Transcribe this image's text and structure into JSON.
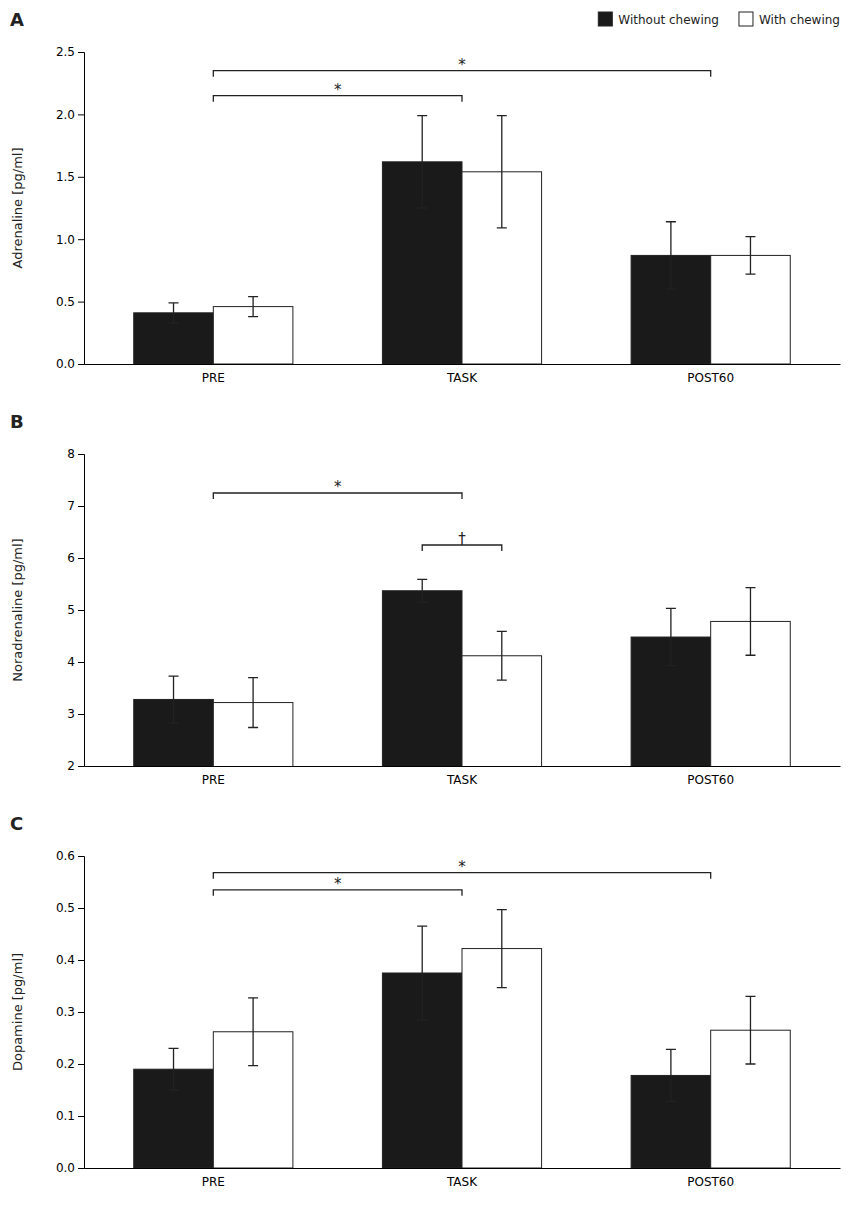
{
  "chart_data": [
    {
      "type": "bar",
      "title": "A",
      "ylabel": "Adrenaline [pg/ml]",
      "categories": [
        "PRE",
        "TASK",
        "POST60"
      ],
      "series": [
        {
          "name": "Without chewing",
          "color": "#1a1a1a",
          "values": [
            0.41,
            1.62,
            0.87
          ],
          "errors": [
            0.08,
            0.37,
            0.27
          ]
        },
        {
          "name": "With chewing",
          "color": "#ffffff",
          "values": [
            0.46,
            1.54,
            0.87
          ],
          "errors": [
            0.08,
            0.45,
            0.15
          ]
        }
      ],
      "ylim": [
        0,
        2.5
      ],
      "yticks": [
        {
          "value": 0,
          "label": "0.0"
        },
        0.5,
        {
          "value": 1.0,
          "label": "1.0"
        },
        1.5,
        {
          "value": 2.0,
          "label": "2.0"
        },
        2.5
      ],
      "grid": false,
      "legend": "upper right",
      "annotations": [
        {
          "text": "*",
          "x": [
            "PRE",
            "TASK"
          ],
          "y": 2.15
        },
        {
          "text": "*",
          "x": [
            "PRE",
            "POST60"
          ],
          "y": 2.35
        }
      ]
    },
    {
      "type": "bar",
      "title": "B",
      "ylabel": "Noradrenaline [pg/ml]",
      "categories": [
        "PRE",
        "TASK",
        "POST60"
      ],
      "series": [
        {
          "name": "Without chewing",
          "color": "#1a1a1a",
          "values": [
            3.28,
            5.37,
            4.48
          ],
          "errors": [
            0.45,
            0.22,
            0.55
          ]
        },
        {
          "name": "With chewing",
          "color": "#ffffff",
          "values": [
            3.22,
            4.12,
            4.78
          ],
          "errors": [
            0.48,
            0.47,
            0.65
          ]
        }
      ],
      "ylim": [
        2,
        8
      ],
      "yticks": [
        2,
        3,
        4,
        5,
        6,
        7,
        8
      ],
      "grid": false,
      "legend": false,
      "annotations": [
        {
          "text": "*",
          "x": [
            "PRE",
            "TASK"
          ],
          "y": 7.25
        },
        {
          "text": "†",
          "x": "TASK",
          "y": 6.25
        }
      ]
    },
    {
      "type": "bar",
      "title": "C",
      "ylabel": "Dopamine [pg/ml]",
      "categories": [
        "PRE",
        "TASK",
        "POST60"
      ],
      "series": [
        {
          "name": "Without chewing",
          "color": "#1a1a1a",
          "values": [
            0.19,
            0.375,
            0.178
          ],
          "errors": [
            0.04,
            0.09,
            0.05
          ]
        },
        {
          "name": "With chewing",
          "color": "#ffffff",
          "values": [
            0.262,
            0.422,
            0.265
          ],
          "errors": [
            0.065,
            0.075,
            0.065
          ]
        }
      ],
      "ylim": [
        0,
        0.6
      ],
      "yticks": [
        {
          "value": 0,
          "label": "0.0"
        },
        0.1,
        0.2,
        0.3,
        0.4,
        0.5,
        0.6
      ],
      "grid": false,
      "legend": false,
      "annotations": [
        {
          "text": "*",
          "x": [
            "PRE",
            "TASK"
          ],
          "y": 0.535
        },
        {
          "text": "*",
          "x": [
            "PRE",
            "POST60"
          ],
          "y": 0.568
        }
      ]
    }
  ]
}
